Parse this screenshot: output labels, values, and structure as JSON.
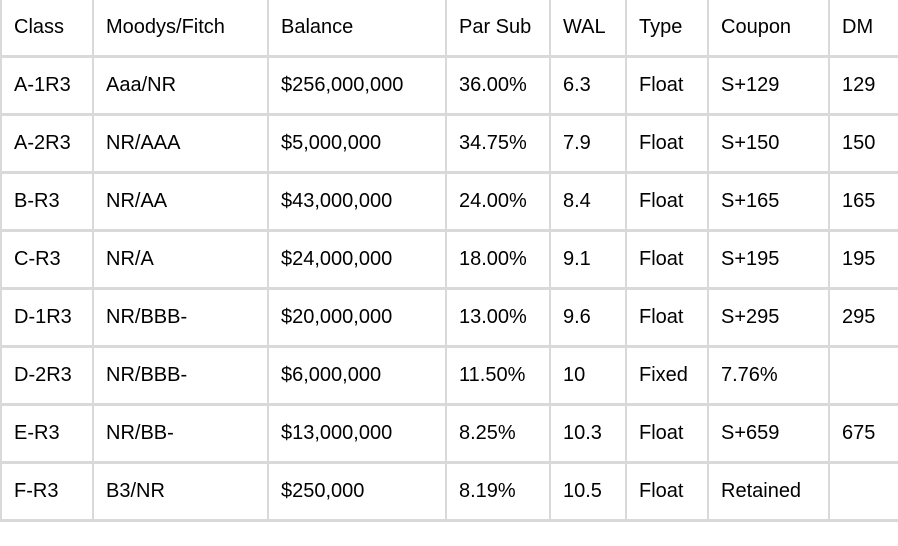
{
  "table": {
    "columns": [
      "Class",
      "Moodys/Fitch",
      "Balance",
      "Par Sub",
      "WAL",
      "Type",
      "Coupon",
      "DM"
    ],
    "rows": [
      [
        "A-1R3",
        "Aaa/NR",
        "$256,000,000",
        "36.00%",
        "6.3",
        "Float",
        "S+129",
        "129"
      ],
      [
        "A-2R3",
        "NR/AAA",
        "$5,000,000",
        "34.75%",
        "7.9",
        "Float",
        "S+150",
        "150"
      ],
      [
        "B-R3",
        "NR/AA",
        "$43,000,000",
        "24.00%",
        "8.4",
        "Float",
        "S+165",
        "165"
      ],
      [
        "C-R3",
        "NR/A",
        "$24,000,000",
        "18.00%",
        "9.1",
        "Float",
        "S+195",
        "195"
      ],
      [
        "D-1R3",
        "NR/BBB-",
        "$20,000,000",
        "13.00%",
        "9.6",
        "Float",
        "S+295",
        "295"
      ],
      [
        "D-2R3",
        "NR/BBB-",
        "$6,000,000",
        "11.50%",
        "10",
        "Fixed",
        "7.76%",
        ""
      ],
      [
        "E-R3",
        "NR/BB-",
        "$13,000,000",
        "8.25%",
        "10.3",
        "Float",
        "S+659",
        "675"
      ],
      [
        "F-R3",
        "B3/NR",
        "$250,000",
        "8.19%",
        "10.5",
        "Float",
        "Retained",
        ""
      ]
    ],
    "colors": {
      "grid_border": "#d9d9d9",
      "cell_background": "#ffffff",
      "text": "#000000"
    }
  }
}
